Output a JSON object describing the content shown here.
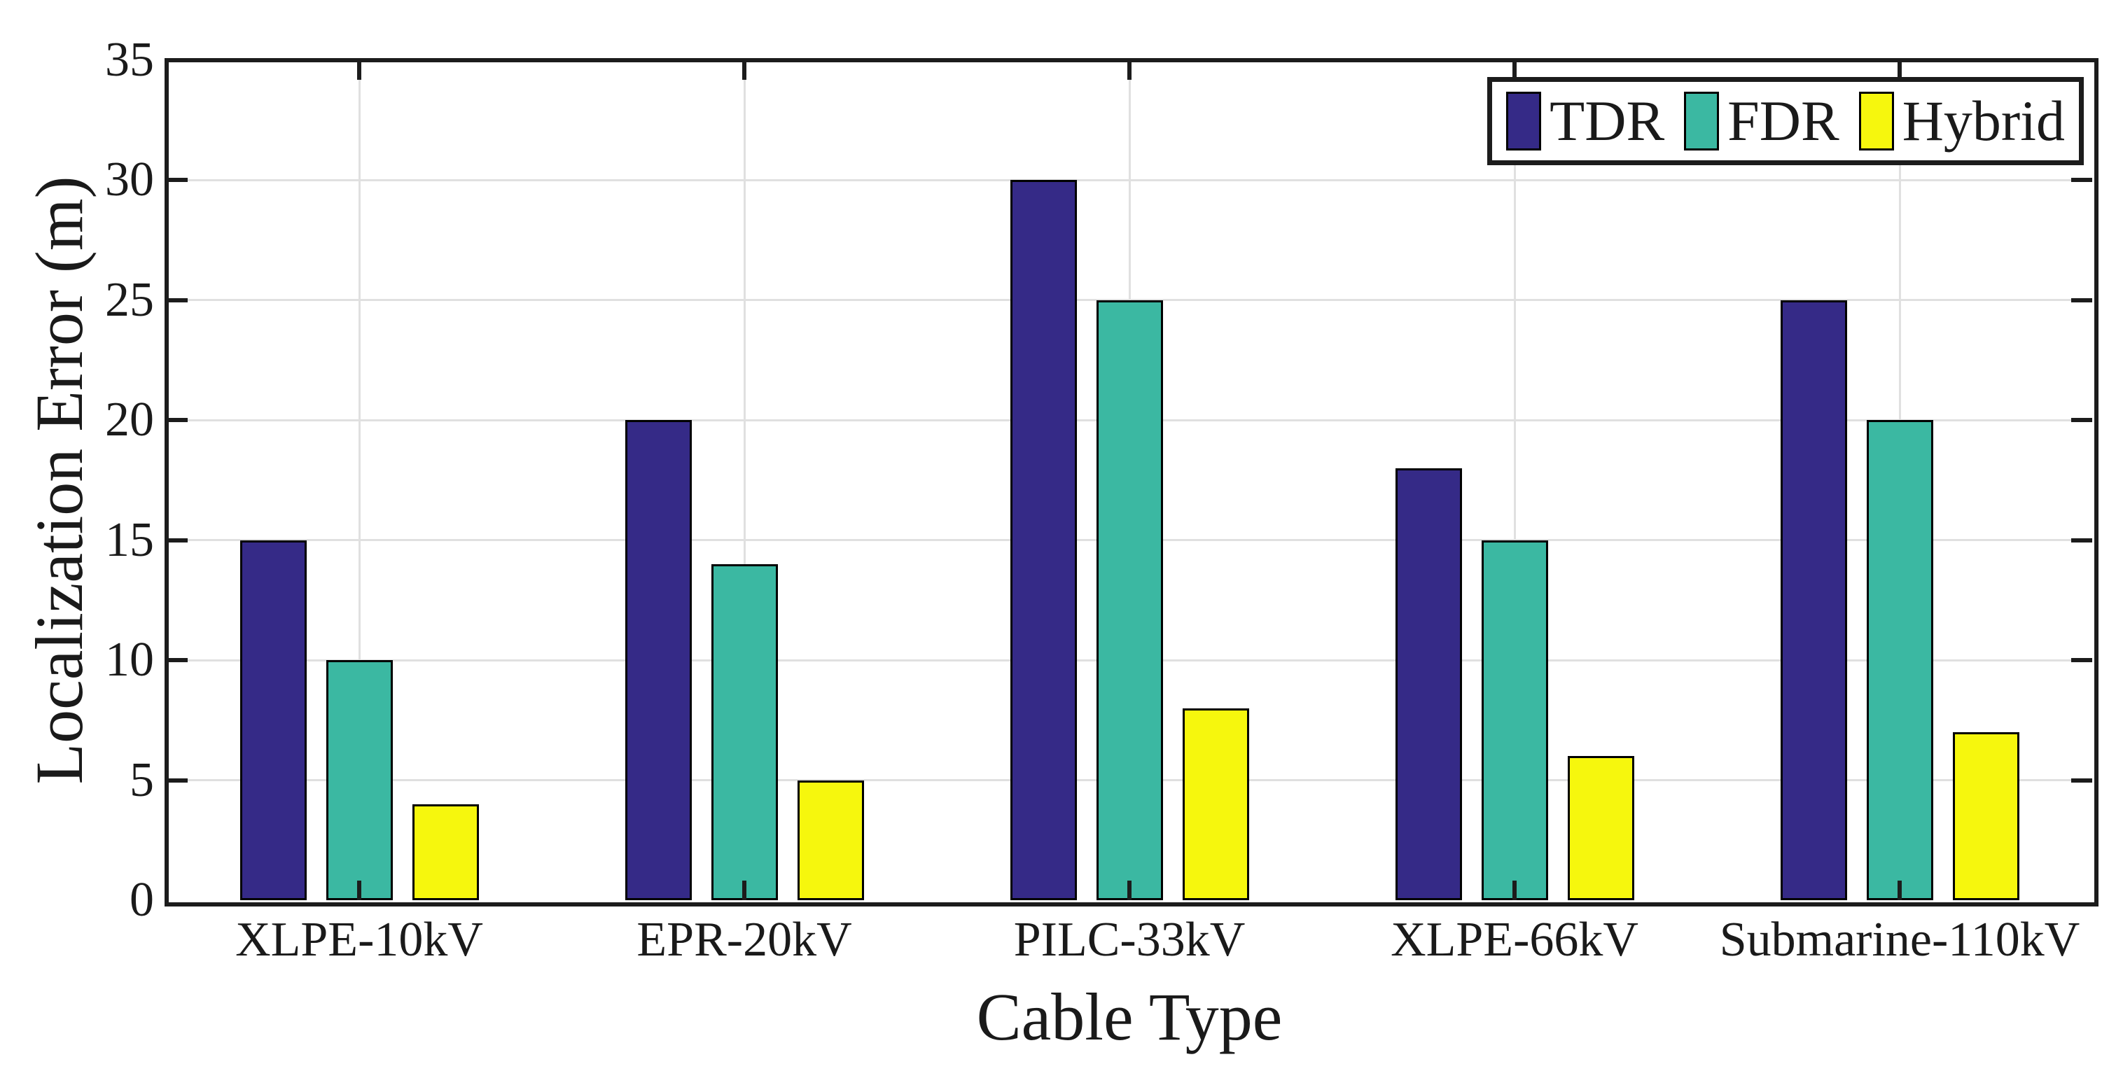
{
  "figure": {
    "background_color": "#ffffff",
    "axis_color": "#1c1c1c",
    "grid_color": "#e0e0e0",
    "text_color": "#1a1a1a"
  },
  "chart_data": {
    "type": "bar",
    "title": "",
    "xlabel": "Cable Type",
    "ylabel": "Localization Error (m)",
    "categories": [
      "XLPE-10kV",
      "EPR-20kV",
      "PILC-33kV",
      "XLPE-66kV",
      "Submarine-110kV"
    ],
    "series": [
      {
        "name": "TDR",
        "color": "#352A87",
        "values": [
          15,
          20,
          30,
          18,
          25
        ]
      },
      {
        "name": "FDR",
        "color": "#3BB8A2",
        "values": [
          10,
          14,
          25,
          15,
          20
        ]
      },
      {
        "name": "Hybrid",
        "color": "#F6F70D",
        "values": [
          4,
          5,
          8,
          6,
          7
        ]
      }
    ],
    "ylim": [
      0,
      35
    ],
    "ytick_step": 5,
    "ytick_labels": [
      "0",
      "5",
      "10",
      "15",
      "20",
      "25",
      "30",
      "35"
    ],
    "grid": true,
    "grid_vertical_at_categories": true,
    "legend_position": "top-right",
    "legend_entries": [
      "TDR",
      "FDR",
      "Hybrid"
    ],
    "bar_edge_color": "#000000"
  }
}
